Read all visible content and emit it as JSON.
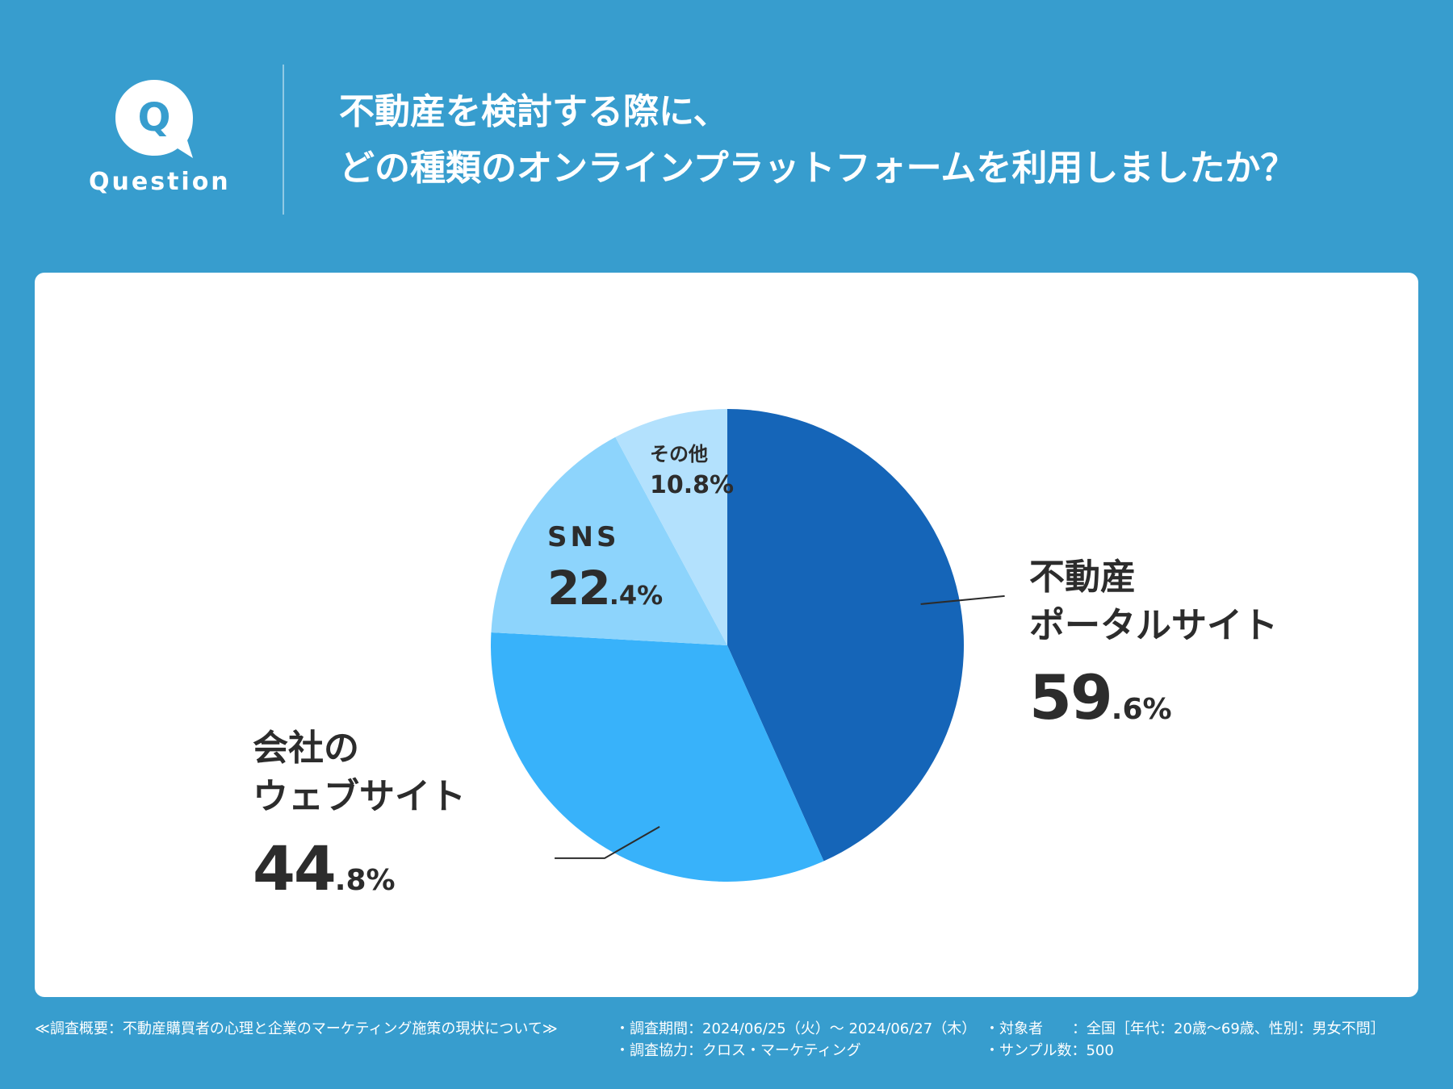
{
  "header": {
    "badge_letter": "Q",
    "badge_word": "Question",
    "title_line1": "不動産を検討する際に、",
    "title_line2": "どの種類のオンラインプラットフォームを利用しましたか？"
  },
  "colors": {
    "background": "#379dce",
    "card": "#ffffff",
    "slice_portal": "#1565b8",
    "slice_company": "#38b2fa",
    "slice_sns": "#8dd4fc",
    "slice_other": "#b3e1fd"
  },
  "chart_data": {
    "type": "pie",
    "title": "不動産を検討する際に、どの種類のオンラインプラットフォームを利用しましたか？",
    "unit": "%",
    "slices": [
      {
        "key": "portal",
        "name_lines": [
          "不動産",
          "ポータルサイト"
        ],
        "value": 59.6,
        "int": "59",
        "dec": ".6%"
      },
      {
        "key": "company",
        "name_lines": [
          "会社の",
          "ウェブサイト"
        ],
        "value": 44.8,
        "int": "44",
        "dec": ".8%"
      },
      {
        "key": "sns",
        "name_lines": [
          "SNS"
        ],
        "value": 22.4,
        "int": "22",
        "dec": ".4%"
      },
      {
        "key": "other",
        "name_lines": [
          "その他"
        ],
        "value": 10.8,
        "int": "10",
        "dec": ".8%"
      }
    ]
  },
  "footer": {
    "survey_title": "≪調査概要：不動産購買者の心理と企業のマーケティング施策の現状について≫",
    "period": "・調査期間：2024/06/25（火）〜 2024/06/27（木）",
    "cooperation": "・調査協力：クロス・マーケティング",
    "target": "・対象者　　：全国［年代：20歳〜69歳、性別：男女不問］",
    "sample": "・サンプル数：500"
  }
}
